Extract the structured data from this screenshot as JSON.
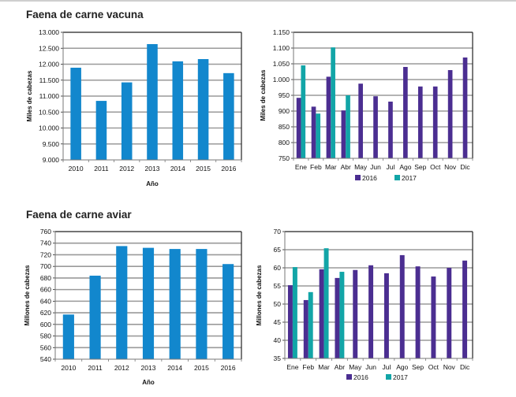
{
  "sections": [
    {
      "title": "Faena de carne vacuna"
    },
    {
      "title": "Faena de carne aviar"
    }
  ],
  "colors": {
    "annual_bar": "#1287cd",
    "series_2016": "#4b2e91",
    "series_2017": "#12a5a7",
    "gridline": "#9a9a9a",
    "frame": "#222222"
  },
  "chart_data": [
    {
      "id": "vacuna-anual",
      "type": "bar",
      "title": "Faena de carne vacuna",
      "xlabel": "Año",
      "ylabel": "Miles de cabezas",
      "categories": [
        "2010",
        "2011",
        "2012",
        "2013",
        "2014",
        "2015",
        "2016"
      ],
      "values": [
        11890,
        10850,
        11430,
        12630,
        12090,
        12160,
        11720
      ],
      "ylim": [
        9000,
        13000
      ],
      "yticks": [
        9000,
        9500,
        10000,
        10500,
        11000,
        11500,
        12000,
        12500,
        13000
      ],
      "ytick_labels": [
        "9.000",
        "9.500",
        "10.000",
        "10.500",
        "11.000",
        "11.500",
        "12.000",
        "12.500",
        "13.000"
      ],
      "grid": true
    },
    {
      "id": "vacuna-mensual",
      "type": "bar",
      "title": "",
      "xlabel": "",
      "ylabel": "Miles de cabezas",
      "categories": [
        "Ene",
        "Feb",
        "Mar",
        "Abr",
        "May",
        "Jun",
        "Jul",
        "Ago",
        "Sep",
        "Oct",
        "Nov",
        "Dic"
      ],
      "series": [
        {
          "name": "2016",
          "values": [
            942,
            914,
            1009,
            902,
            987,
            947,
            930,
            1040,
            978,
            978,
            1030,
            1070
          ]
        },
        {
          "name": "2017",
          "values": [
            1045,
            892,
            1102,
            950,
            null,
            null,
            null,
            null,
            null,
            null,
            null,
            null
          ]
        }
      ],
      "ylim": [
        750,
        1150
      ],
      "yticks": [
        750,
        800,
        850,
        900,
        950,
        1000,
        1050,
        1100,
        1150
      ],
      "ytick_labels": [
        "750",
        "800",
        "850",
        "900",
        "950",
        "1.000",
        "1.050",
        "1.100",
        "1.150"
      ],
      "legend": "bottom",
      "grid": true
    },
    {
      "id": "aviar-anual",
      "type": "bar",
      "title": "Faena de carne aviar",
      "xlabel": "Año",
      "ylabel": "Millones de cabezas",
      "categories": [
        "2010",
        "2011",
        "2012",
        "2013",
        "2014",
        "2015",
        "2016"
      ],
      "values": [
        617,
        684,
        735,
        732,
        730,
        730,
        704
      ],
      "ylim": [
        540,
        760
      ],
      "yticks": [
        540,
        560,
        580,
        600,
        620,
        640,
        660,
        680,
        700,
        720,
        740,
        760
      ],
      "ytick_labels": [
        "540",
        "560",
        "580",
        "600",
        "620",
        "640",
        "660",
        "680",
        "700",
        "720",
        "740",
        "760"
      ],
      "grid": true
    },
    {
      "id": "aviar-mensual",
      "type": "bar",
      "title": "",
      "xlabel": "",
      "ylabel": "Millones de cabezas",
      "categories": [
        "Ene",
        "Feb",
        "Mar",
        "Abr",
        "May",
        "Jun",
        "Jul",
        "Ago",
        "Sep",
        "Oct",
        "Nov",
        "Dic"
      ],
      "series": [
        {
          "name": "2016",
          "values": [
            55.2,
            51.1,
            59.6,
            57.2,
            59.4,
            60.7,
            58.5,
            63.5,
            60.4,
            57.6,
            60.0,
            62.0
          ]
        },
        {
          "name": "2017",
          "values": [
            60.2,
            53.3,
            65.4,
            58.9,
            null,
            null,
            null,
            null,
            null,
            null,
            null,
            null
          ]
        }
      ],
      "ylim": [
        35,
        70
      ],
      "yticks": [
        35,
        40,
        45,
        50,
        55,
        60,
        65,
        70
      ],
      "ytick_labels": [
        "35",
        "40",
        "45",
        "50",
        "55",
        "60",
        "65",
        "70"
      ],
      "legend": "bottom",
      "grid": true
    }
  ]
}
